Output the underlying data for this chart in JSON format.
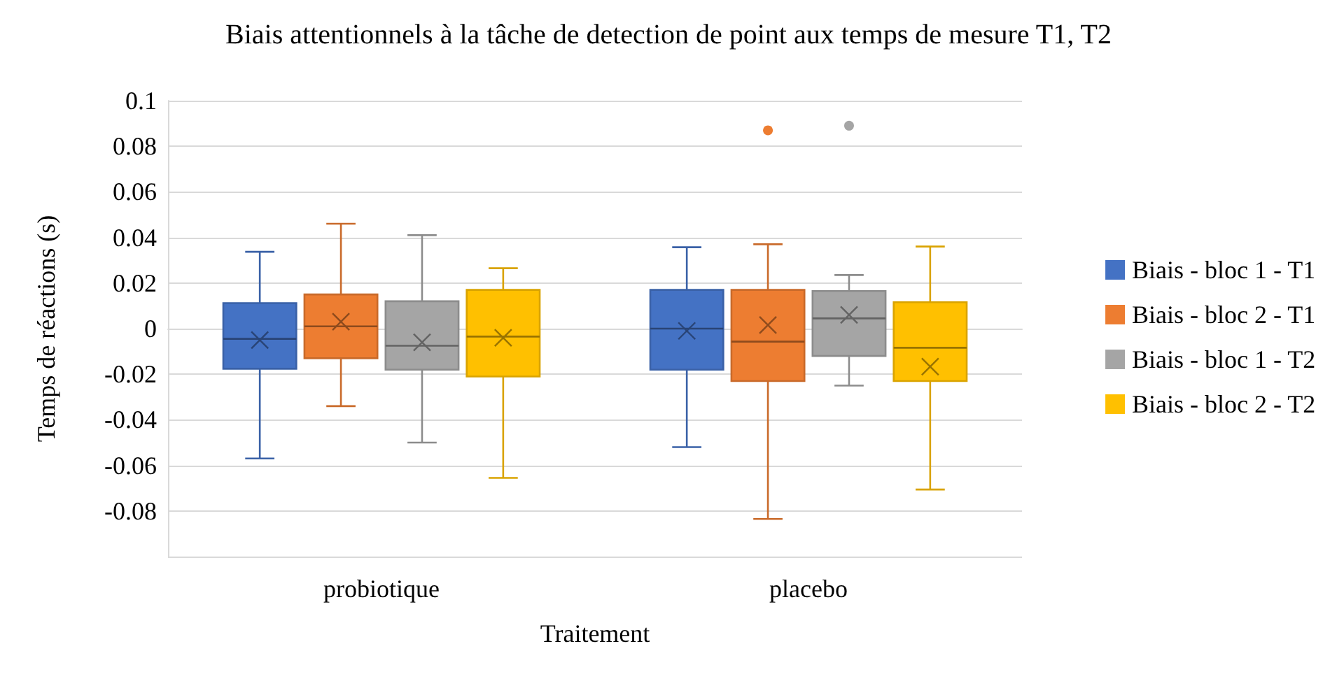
{
  "chart_data": {
    "type": "box",
    "title": "Biais attentionnels à la tâche de detection de point aux temps de mesure T1, T2",
    "xlabel": "Traitement",
    "ylabel": "Temps de réactions (s)",
    "categories": [
      "probiotique",
      "placebo"
    ],
    "ylim": [
      -0.1,
      0.1
    ],
    "yticks": [
      {
        "value": -0.1,
        "label": null
      },
      -0.08,
      -0.06,
      -0.04,
      -0.02,
      0,
      0.02,
      0.04,
      0.06,
      0.08,
      0.1
    ],
    "grid": "y",
    "legend": "right",
    "series": [
      {
        "name": "Biais - bloc 1 - T1",
        "color": "#4472c4",
        "boxes": [
          {
            "low": -0.057,
            "q1": -0.0176,
            "median": -0.0045,
            "q3": 0.0112,
            "high": 0.0337,
            "mean": -0.005
          },
          {
            "low": -0.052,
            "q1": -0.018,
            "median": 0,
            "q3": 0.017,
            "high": 0.0357,
            "mean": -0.001
          }
        ]
      },
      {
        "name": "Biais - bloc 2 - T1",
        "color": "#ed7d31",
        "boxes": [
          {
            "low": -0.034,
            "q1": -0.013,
            "median": 0.001,
            "q3": 0.015,
            "high": 0.046,
            "mean": 0.003
          },
          {
            "low": -0.0835,
            "q1": -0.023,
            "median": -0.0057,
            "q3": 0.017,
            "high": 0.037,
            "mean": 0.0016,
            "outliers": [
              0.087
            ]
          }
        ]
      },
      {
        "name": "Biais - bloc 1 - T2",
        "color": "#a5a5a5",
        "boxes": [
          {
            "low": -0.05,
            "q1": -0.018,
            "median": -0.0075,
            "q3": 0.012,
            "high": 0.041,
            "mean": -0.006
          },
          {
            "low": -0.025,
            "q1": -0.012,
            "median": 0.0045,
            "q3": 0.0165,
            "high": 0.0235,
            "mean": 0.006,
            "outliers": [
              0.089
            ]
          }
        ]
      },
      {
        "name": "Biais - bloc 2 - T2",
        "color": "#ffc000",
        "boxes": [
          {
            "low": -0.0655,
            "q1": -0.021,
            "median": -0.0035,
            "q3": 0.017,
            "high": 0.0265,
            "mean": -0.004
          },
          {
            "low": -0.0706,
            "q1": -0.023,
            "median": -0.0084,
            "q3": 0.0116,
            "high": 0.036,
            "mean": -0.0167
          }
        ]
      }
    ]
  }
}
